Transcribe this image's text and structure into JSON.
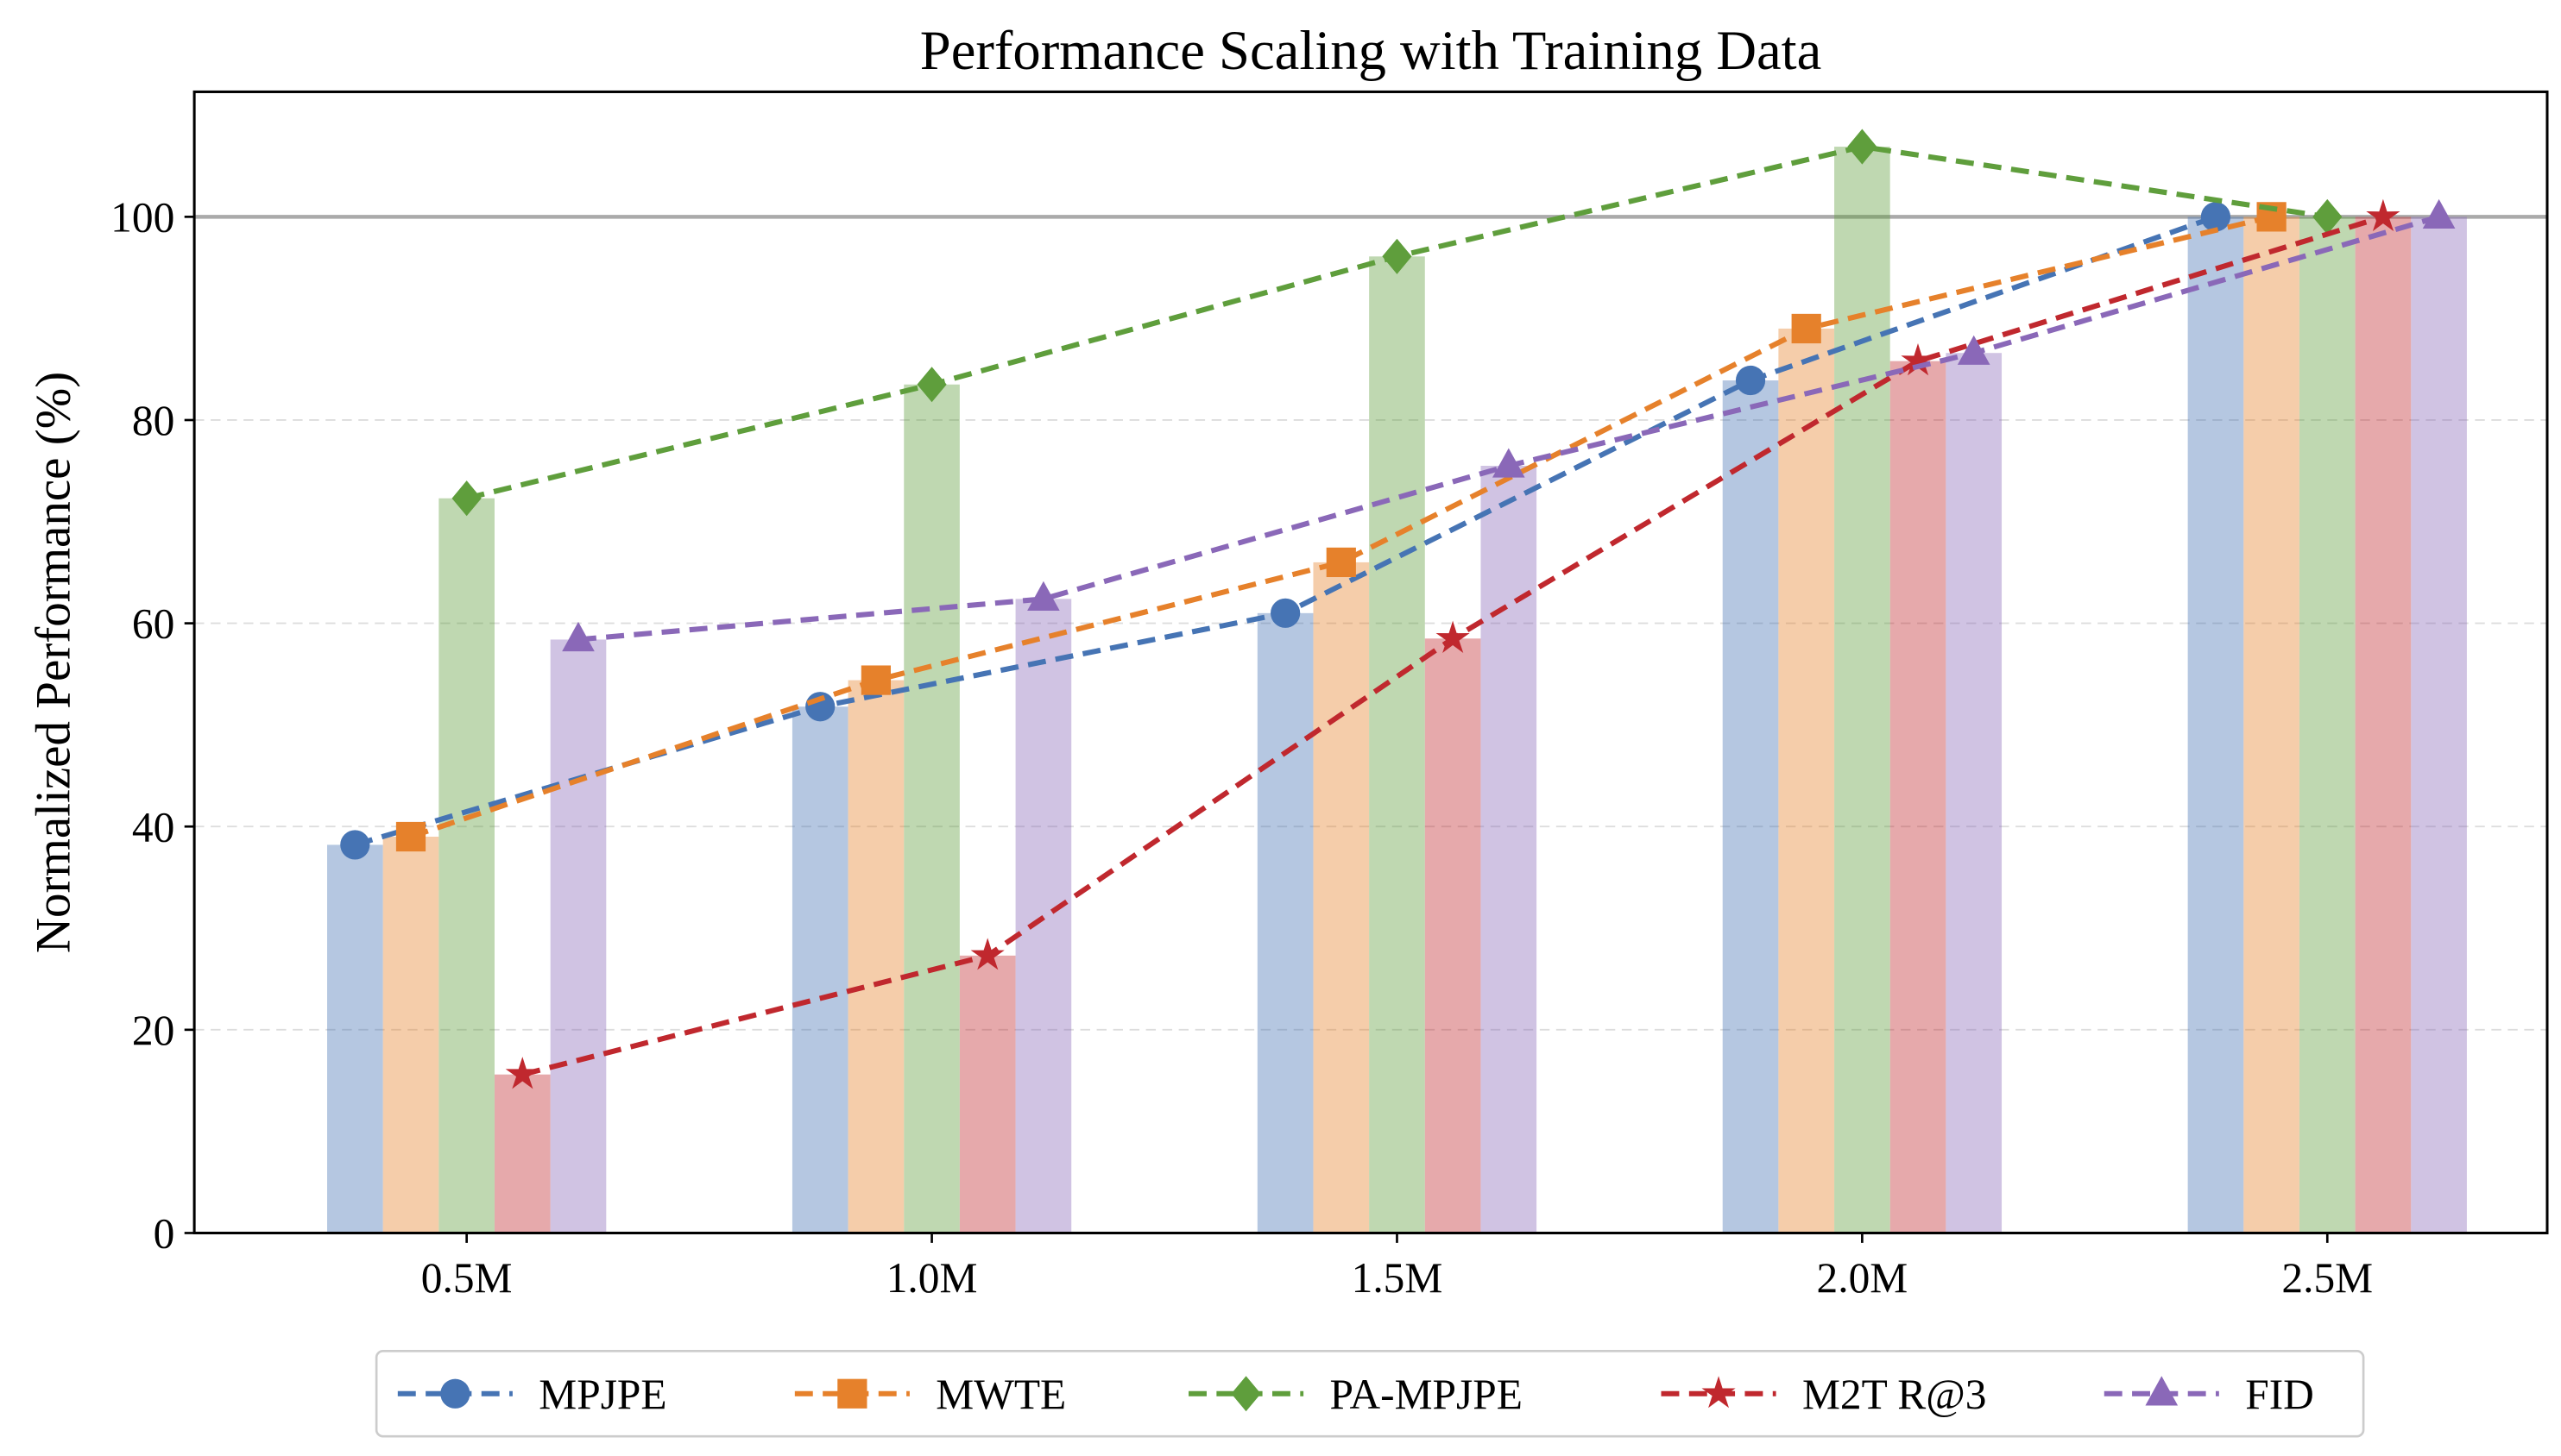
{
  "chart_data": {
    "type": "bar+line",
    "title": "Performance Scaling with Training Data",
    "xlabel": "",
    "ylabel": "Normalized Performance (%)",
    "categories": [
      "0.5M",
      "1.0M",
      "1.5M",
      "2.0M",
      "2.5M"
    ],
    "ylim": [
      0,
      112.3
    ],
    "yticks": [
      0,
      20,
      40,
      60,
      80,
      100
    ],
    "reference_line": 100,
    "grid": "horizontal dashed",
    "legend_placement": "bottom-center",
    "series": [
      {
        "name": "MPJPE",
        "color": "#4674b4",
        "marker": "circle",
        "values": [
          38.2,
          51.8,
          61.0,
          83.9,
          100
        ]
      },
      {
        "name": "MWTE",
        "color": "#e6812b",
        "marker": "square",
        "values": [
          39.0,
          54.4,
          66.0,
          89.0,
          100
        ]
      },
      {
        "name": "PA-MPJPE",
        "color": "#5f9e3c",
        "marker": "diamond",
        "values": [
          72.3,
          83.5,
          96.1,
          106.9,
          100
        ]
      },
      {
        "name": "M2T R@3",
        "color": "#c0282e",
        "marker": "star",
        "values": [
          15.6,
          27.3,
          58.5,
          85.8,
          100
        ]
      },
      {
        "name": "FID",
        "color": "#8a68b8",
        "marker": "triangle",
        "values": [
          58.4,
          62.4,
          75.5,
          86.6,
          100
        ]
      }
    ]
  }
}
